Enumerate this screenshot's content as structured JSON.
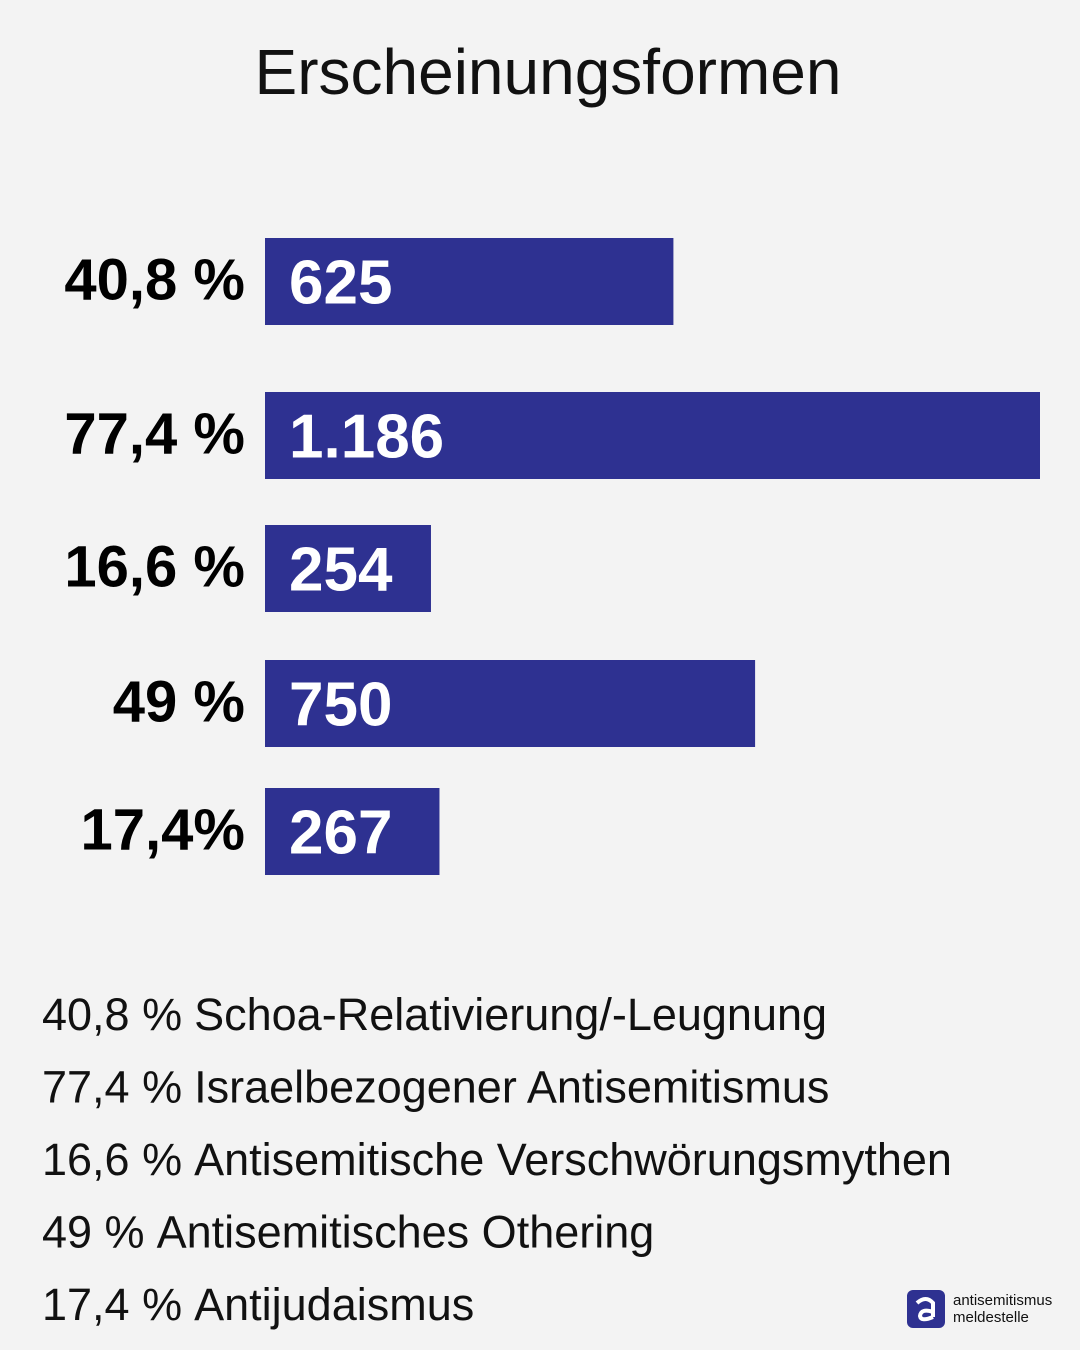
{
  "chart_data": {
    "type": "bar",
    "orientation": "horizontal",
    "title": "Erscheinungsformen",
    "categories": [
      "Schoa-Relativierung/-Leugnung",
      "Israelbezogener Antisemitismus",
      "Antisemitische Verschwörungsmythen",
      "Antisemitisches Othering",
      "Antijudaismus"
    ],
    "values": [
      625,
      1186,
      254,
      750,
      267
    ],
    "value_labels": [
      "625",
      "1.186",
      "254",
      "750",
      "267"
    ],
    "share_labels": [
      "40,8 %",
      "77,4 %",
      "16,6 %",
      "49 %",
      "17,4%"
    ],
    "legend_share_labels": [
      "40,8 %",
      "77,4 %",
      "16,6 %",
      "49 %",
      "17,4 %"
    ],
    "color": "#2e3191"
  },
  "brand": {
    "line1": "antisemitismus",
    "line2": "meldestelle"
  }
}
